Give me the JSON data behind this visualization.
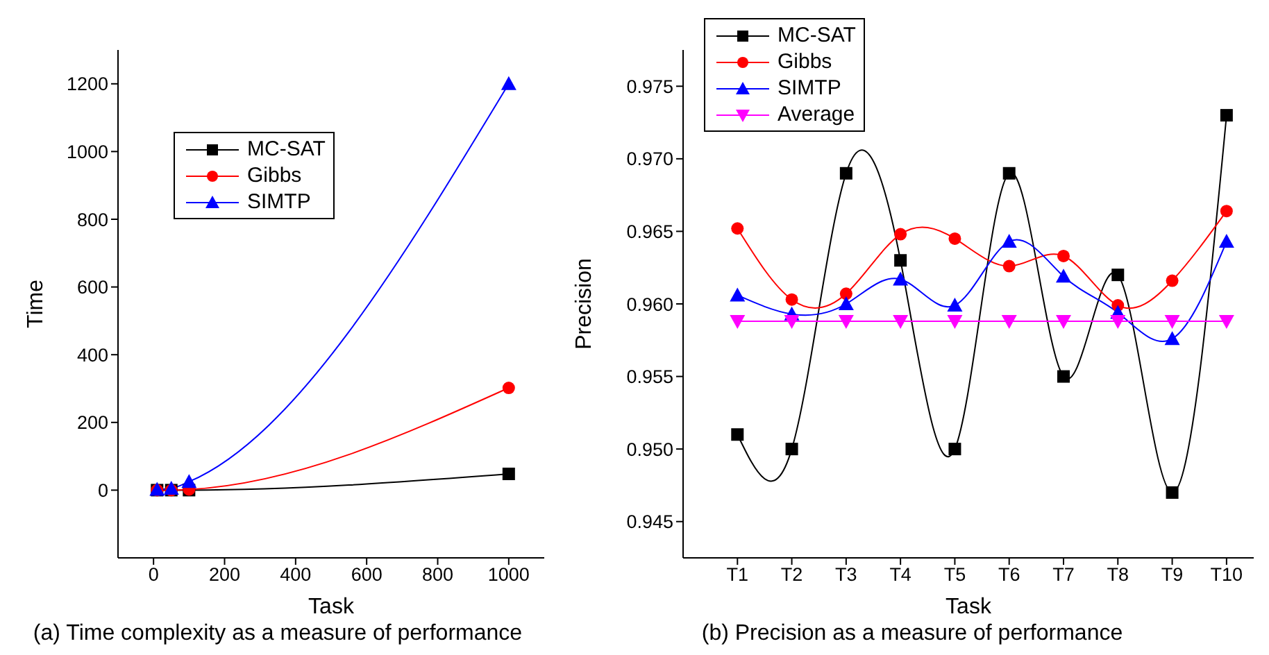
{
  "chart_data": [
    {
      "type": "line",
      "xlabel": "Task",
      "ylabel": "Time",
      "x": [
        10,
        50,
        100,
        1000
      ],
      "series": [
        {
          "name": "MC-SAT",
          "color": "#000000",
          "marker": "square",
          "values": [
            0,
            0,
            0,
            48
          ]
        },
        {
          "name": "Gibbs",
          "color": "#ff0000",
          "marker": "circle",
          "values": [
            0,
            0,
            2,
            302
          ]
        },
        {
          "name": "SIMTP",
          "color": "#0000ff",
          "marker": "triangle",
          "values": [
            2,
            5,
            25,
            1200
          ]
        }
      ],
      "xlim": [
        -100,
        1100
      ],
      "xticks": [
        0,
        200,
        400,
        600,
        800,
        1000
      ],
      "ylim": [
        -200,
        1300
      ],
      "yticks": [
        0,
        200,
        400,
        600,
        800,
        1000,
        1200
      ],
      "legend": "top left",
      "grid": false,
      "annotations": [
        "(a)  Time complexity as a measure of performance"
      ]
    },
    {
      "type": "line",
      "xlabel": "Task",
      "ylabel": "Precision",
      "categories": [
        "T1",
        "T2",
        "T3",
        "T4",
        "T5",
        "T6",
        "T7",
        "T8",
        "T9",
        "T10"
      ],
      "series": [
        {
          "name": "MC-SAT",
          "color": "#000000",
          "marker": "square",
          "values": [
            0.951,
            0.95,
            0.969,
            0.963,
            0.95,
            0.969,
            0.955,
            0.962,
            0.947,
            0.973
          ]
        },
        {
          "name": "Gibbs",
          "color": "#ff0000",
          "marker": "circle",
          "values": [
            0.9652,
            0.9603,
            0.9607,
            0.9648,
            0.9645,
            0.9626,
            0.9633,
            0.9599,
            0.9616,
            0.9664
          ]
        },
        {
          "name": "SIMTP",
          "color": "#0000ff",
          "marker": "triangle",
          "values": [
            0.9606,
            0.9593,
            0.96,
            0.9617,
            0.9599,
            0.9643,
            0.9619,
            0.9594,
            0.9576,
            0.9643
          ]
        },
        {
          "name": "Average",
          "color": "#ff00ff",
          "marker": "triangle-down",
          "values": [
            0.9588,
            0.9588,
            0.9588,
            0.9588,
            0.9588,
            0.9588,
            0.9588,
            0.9588,
            0.9588,
            0.9588
          ]
        }
      ],
      "ylim": [
        0.9425,
        0.9775
      ],
      "yticks": [
        0.945,
        {
          "value": 0.95,
          "label": "0.950"
        },
        0.955,
        {
          "value": 0.96,
          "label": "0.960"
        },
        0.965,
        {
          "value": 0.97,
          "label": "0.970"
        },
        0.975
      ],
      "legend": "top left",
      "grid": false,
      "annotations": [
        "(b)  Precision as a measure of performance"
      ]
    }
  ]
}
